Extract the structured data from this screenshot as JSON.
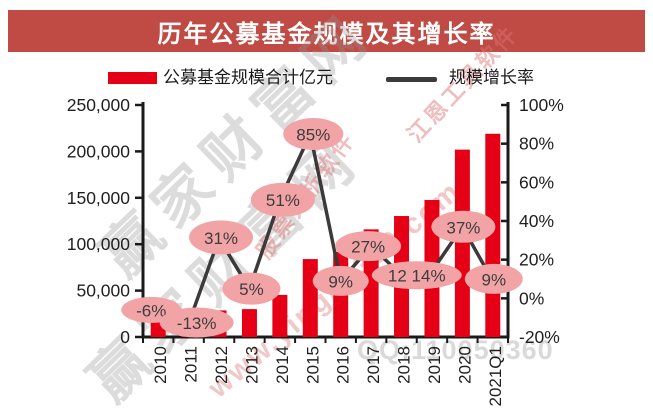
{
  "header": {
    "title": "历年公募基金规模及其增长率"
  },
  "legend": {
    "series1": "公募基金规模合计亿元",
    "series2": "规模增长率"
  },
  "chart_data": {
    "type": "bar",
    "subtype": "combo-bar-line",
    "title": "历年公募基金规模及其增长率",
    "categories": [
      "2010",
      "2011",
      "2012",
      "2013",
      "2014",
      "2015",
      "2016",
      "2017",
      "2018",
      "2019",
      "2020",
      "2021Q1"
    ],
    "series": [
      {
        "name": "公募基金规模合计亿元",
        "type": "bar",
        "axis": "left",
        "unit": "亿元",
        "values": [
          25184,
          21918,
          28661,
          30050,
          45354,
          83972,
          91592,
          115998,
          130356,
          147674,
          201919,
          219000
        ]
      },
      {
        "name": "规模增长率",
        "type": "line",
        "axis": "right",
        "unit": "%",
        "values": [
          -6,
          -13,
          31,
          5,
          51,
          85,
          9,
          27,
          12,
          14,
          37,
          9
        ]
      }
    ],
    "point_labels": [
      "-6%",
      "-13%",
      "31%",
      "5%",
      "51%",
      "85%",
      "9%",
      "27%",
      "12 14%",
      "37%",
      "9%"
    ],
    "left_axis": {
      "min": 0,
      "max": 250000,
      "ticks": [
        "250,000",
        "200,000",
        "150,000",
        "100,000",
        "50,000",
        "0"
      ]
    },
    "right_axis": {
      "min": -20,
      "max": 100,
      "ticks": [
        "100%",
        "80%",
        "60%",
        "40%",
        "20%",
        "0%",
        "-20%"
      ]
    },
    "grid": false,
    "legend_position": "top"
  },
  "watermarks": {
    "brand_large_1": "赢家财富网",
    "brand_large_2": "赢家财富网",
    "slogan_1": "股票分析软件",
    "slogan_2": "江恩工具软件",
    "website": "www.yingjia360.com",
    "qq": "QQ:110050360"
  },
  "colors": {
    "title_bar": "#c04a44",
    "title_text": "#ffffff",
    "bar": "#e60016",
    "line": "#3a3a3a",
    "pill_fill": "#f2a3a6",
    "pill_text": "#3d3d3d",
    "axis": "#1a1a1a",
    "tick_text": "#1f1f1f"
  }
}
